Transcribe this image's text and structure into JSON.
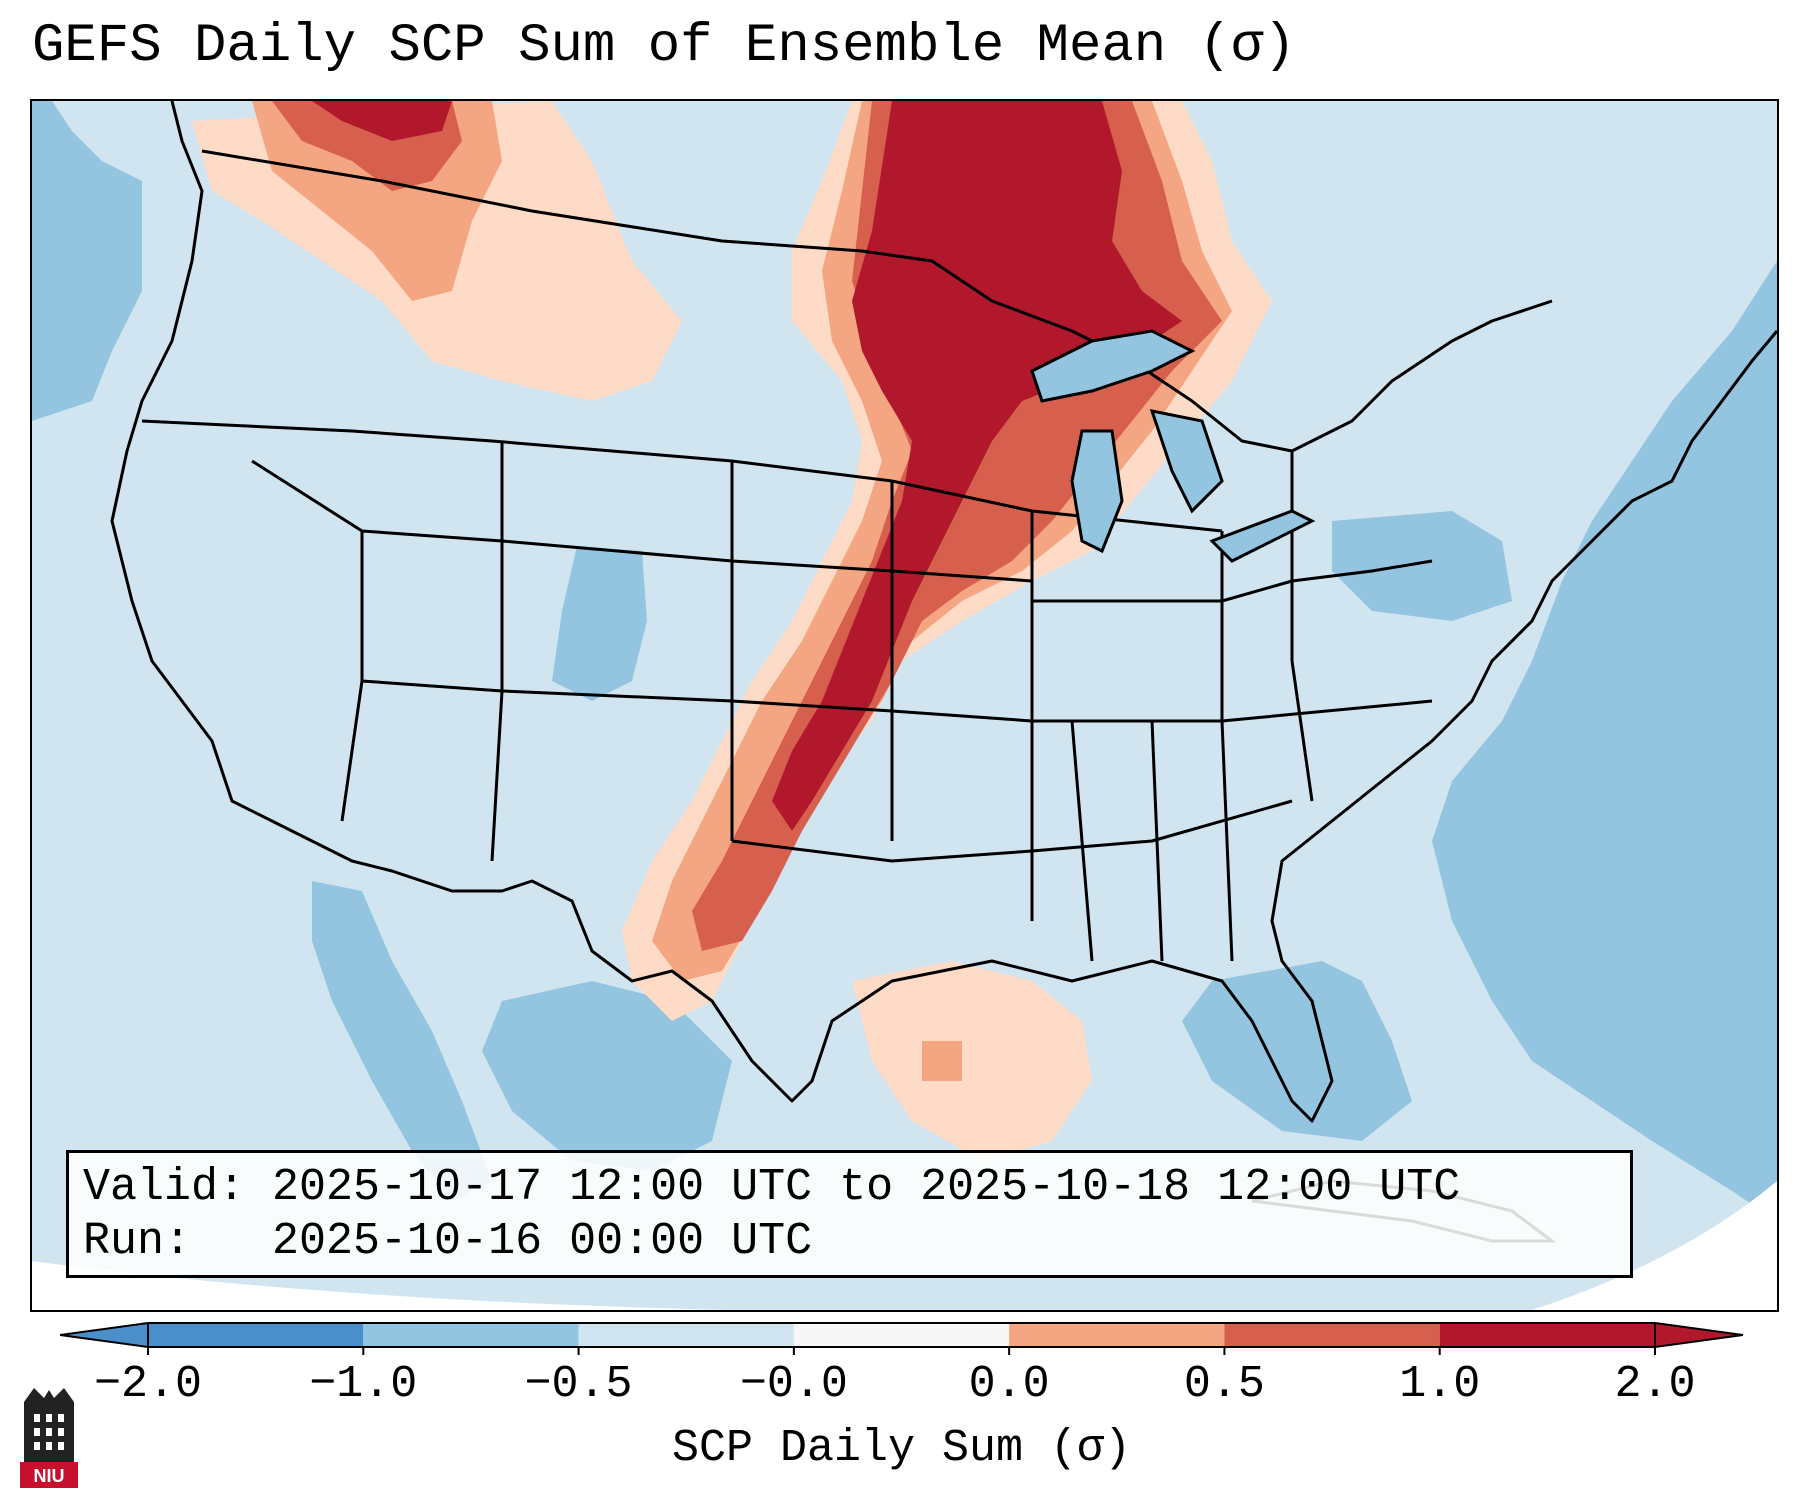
{
  "title": "GEFS Daily SCP Sum of Ensemble Mean (σ)",
  "info": {
    "valid_line": "Valid: 2025-10-17 12:00 UTC to 2025-10-18 12:00 UTC",
    "run_line": "Run:   2025-10-16 00:00 UTC"
  },
  "colorbar": {
    "label": "SCP Daily Sum (σ)",
    "tick_labels": [
      "−2.0",
      "−1.0",
      "−0.5",
      "−0.0",
      "0.0",
      "0.5",
      "1.0",
      "2.0"
    ],
    "bins": [
      {
        "color": "#4a8fc9"
      },
      {
        "color": "#94c5e0"
      },
      {
        "color": "#d1e5f0"
      },
      {
        "color": "#f7f7f7"
      },
      {
        "color": "#fddbc7"
      },
      {
        "color": "#f4a582"
      },
      {
        "color": "#d6604d"
      },
      {
        "color": "#b2182b"
      }
    ]
  },
  "map": {
    "region": "Contiguous United States",
    "background_color": "#d1e5f0",
    "ocean_color": "#94c5e0",
    "max_color": "#b2182b"
  },
  "logo": {
    "text": "NIU"
  }
}
